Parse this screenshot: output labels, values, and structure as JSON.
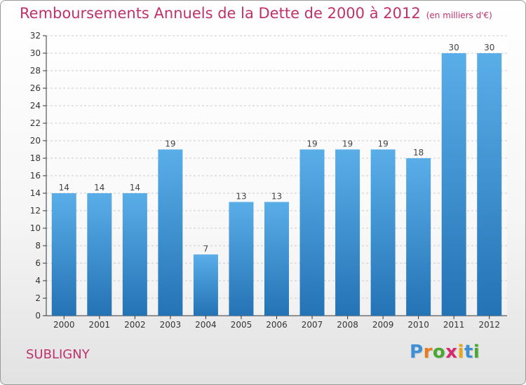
{
  "header": {
    "title": "Remboursements Annuels de la Dette de 2000 à 2012",
    "unit": "(en milliers d'€)"
  },
  "footer": {
    "town": "SUBLIGNY",
    "logo_text": "Proxiti"
  },
  "colors": {
    "title": "#c0306a",
    "bar_top": "#5aaee8",
    "bar_bottom": "#2473b5",
    "grid": "#cccccc",
    "axis": "#333333",
    "logo": [
      "#3d8fd6",
      "#e87b1e",
      "#4aa832",
      "#d8296f",
      "#e8a514",
      "#3d8fd6",
      "#4aa832"
    ]
  },
  "chart_data": {
    "type": "bar",
    "title": "Remboursements Annuels de la Dette de 2000 à 2012",
    "ylabel": "(en milliers d'€)",
    "xlabel": "",
    "categories": [
      "2000",
      "2001",
      "2002",
      "2003",
      "2004",
      "2005",
      "2006",
      "2007",
      "2008",
      "2009",
      "2010",
      "2011",
      "2012"
    ],
    "values": [
      14,
      14,
      14,
      19,
      7,
      13,
      13,
      19,
      19,
      19,
      18,
      30,
      30
    ],
    "ylim": [
      0,
      32
    ],
    "yticks": [
      0,
      2,
      4,
      6,
      8,
      10,
      12,
      14,
      16,
      18,
      20,
      22,
      24,
      26,
      28,
      30,
      32
    ],
    "grid": "horizontal dashed",
    "legend": "none",
    "data_labels": true
  }
}
